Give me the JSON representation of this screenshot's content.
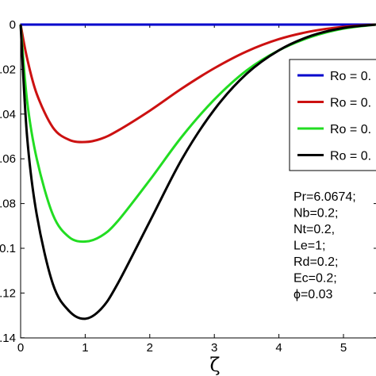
{
  "chart_data": {
    "type": "line",
    "xlabel": "ζ",
    "ylabel": "",
    "xlim": [
      0,
      5.5
    ],
    "ylim": [
      -0.14,
      0.005
    ],
    "x_ticks": [
      "0",
      "1",
      "2",
      "3",
      "4",
      "5"
    ],
    "x_tick_values": [
      0,
      1,
      2,
      3,
      4,
      5
    ],
    "y_ticks": [
      "0",
      ".02",
      ".04",
      ".06",
      ".08",
      "0.1",
      ".12",
      ".14"
    ],
    "y_tick_values": [
      0,
      -0.02,
      -0.04,
      -0.06,
      -0.08,
      -0.1,
      -0.12,
      -0.14
    ],
    "grid": false,
    "legend_position": "right",
    "series": [
      {
        "name": "Ro = 0.",
        "color": "#0000cc",
        "x": [
          0,
          0.5,
          1,
          1.5,
          2,
          2.5,
          3,
          3.5,
          4,
          4.5,
          5,
          5.5
        ],
        "y": [
          0,
          0,
          0,
          0,
          0,
          0,
          0,
          0,
          0,
          0,
          0,
          0
        ]
      },
      {
        "name": "Ro = 0.",
        "color": "#cc1111",
        "x": [
          0,
          0.1,
          0.25,
          0.5,
          0.75,
          1,
          1.25,
          1.5,
          2,
          2.5,
          3,
          3.5,
          4,
          4.5,
          5,
          5.5
        ],
        "y": [
          0,
          -0.015,
          -0.031,
          -0.046,
          -0.0515,
          -0.0525,
          -0.051,
          -0.0475,
          -0.0385,
          -0.0285,
          -0.0195,
          -0.012,
          -0.0065,
          -0.003,
          -0.001,
          0
        ]
      },
      {
        "name": "Ro = 0.",
        "color": "#22dd22",
        "x": [
          0,
          0.1,
          0.25,
          0.5,
          0.75,
          1,
          1.25,
          1.5,
          2,
          2.5,
          3,
          3.5,
          4,
          4.5,
          5,
          5.5
        ],
        "y": [
          0,
          -0.034,
          -0.06,
          -0.085,
          -0.095,
          -0.097,
          -0.0945,
          -0.088,
          -0.0695,
          -0.05,
          -0.0335,
          -0.0205,
          -0.0115,
          -0.0055,
          -0.0018,
          0
        ]
      },
      {
        "name": "Ro = 0.",
        "color": "#000000",
        "x": [
          0,
          0.1,
          0.25,
          0.5,
          0.75,
          1,
          1.25,
          1.5,
          2,
          2.5,
          3,
          3.5,
          4,
          4.5,
          5,
          5.5
        ],
        "y": [
          0,
          -0.05,
          -0.085,
          -0.116,
          -0.128,
          -0.1315,
          -0.127,
          -0.116,
          -0.088,
          -0.06,
          -0.038,
          -0.022,
          -0.0115,
          -0.005,
          -0.0015,
          0
        ]
      }
    ],
    "annotations": [
      "Pr=6.0674;",
      "Nb=0.2;",
      "Nt=0.2,",
      "Le=1;",
      "Rd=0.2;",
      "Ec=0.2;",
      "ϕ=0.03"
    ]
  }
}
